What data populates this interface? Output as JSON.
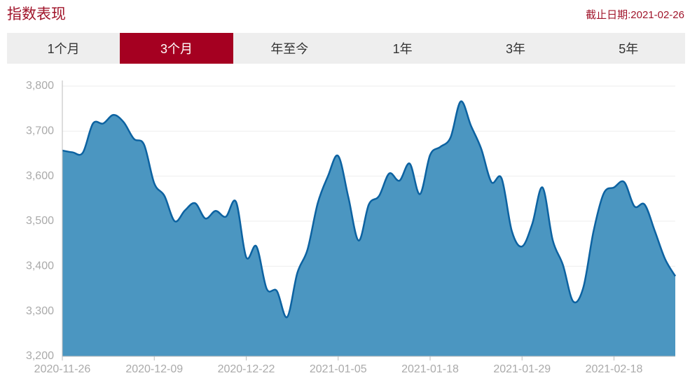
{
  "header": {
    "title": "指数表现",
    "as_of": "截止日期:2021-02-26"
  },
  "tabs": [
    "1个月",
    "3个月",
    "年至今",
    "1年",
    "3年",
    "5年"
  ],
  "active_tab": 1,
  "chart_data": {
    "type": "area",
    "categories": [
      "2020-11-26",
      null,
      null,
      null,
      null,
      null,
      null,
      null,
      null,
      "2020-12-09",
      null,
      null,
      null,
      null,
      null,
      null,
      null,
      null,
      "2020-12-22",
      null,
      null,
      null,
      null,
      null,
      null,
      null,
      null,
      "2021-01-05",
      null,
      null,
      null,
      null,
      null,
      null,
      null,
      null,
      "2021-01-18",
      null,
      null,
      null,
      null,
      null,
      null,
      null,
      null,
      "2021-01-29",
      null,
      null,
      null,
      null,
      null,
      null,
      null,
      null,
      "2021-02-18",
      null,
      null,
      null,
      null,
      null,
      null
    ],
    "series": [
      {
        "color": "#0c62a1",
        "fill": "#4b96c1",
        "values": [
          3657,
          3653,
          3652,
          3717,
          3717,
          3736,
          3720,
          3683,
          3670,
          3584,
          3556,
          3500,
          3524,
          3540,
          3506,
          3523,
          3510,
          3543,
          3420,
          3444,
          3350,
          3345,
          3287,
          3385,
          3437,
          3540,
          3600,
          3645,
          3553,
          3457,
          3537,
          3556,
          3606,
          3590,
          3628,
          3560,
          3647,
          3665,
          3686,
          3766,
          3712,
          3661,
          3587,
          3595,
          3478,
          3444,
          3494,
          3575,
          3458,
          3403,
          3322,
          3353,
          3478,
          3562,
          3575,
          3587,
          3533,
          3537,
          3478,
          3416,
          3378
        ]
      }
    ],
    "ylim": [
      3200,
      3800
    ],
    "yticks": [
      {
        "value": 3200,
        "label": "3,200"
      },
      {
        "value": 3300,
        "label": "3,300"
      },
      {
        "value": 3400,
        "label": "3,400"
      },
      {
        "value": 3500,
        "label": "3,500"
      },
      {
        "value": 3600,
        "label": "3,600"
      },
      {
        "value": 3700,
        "label": "3,700"
      },
      {
        "value": 3800,
        "label": "3,800"
      }
    ],
    "grid": true
  }
}
